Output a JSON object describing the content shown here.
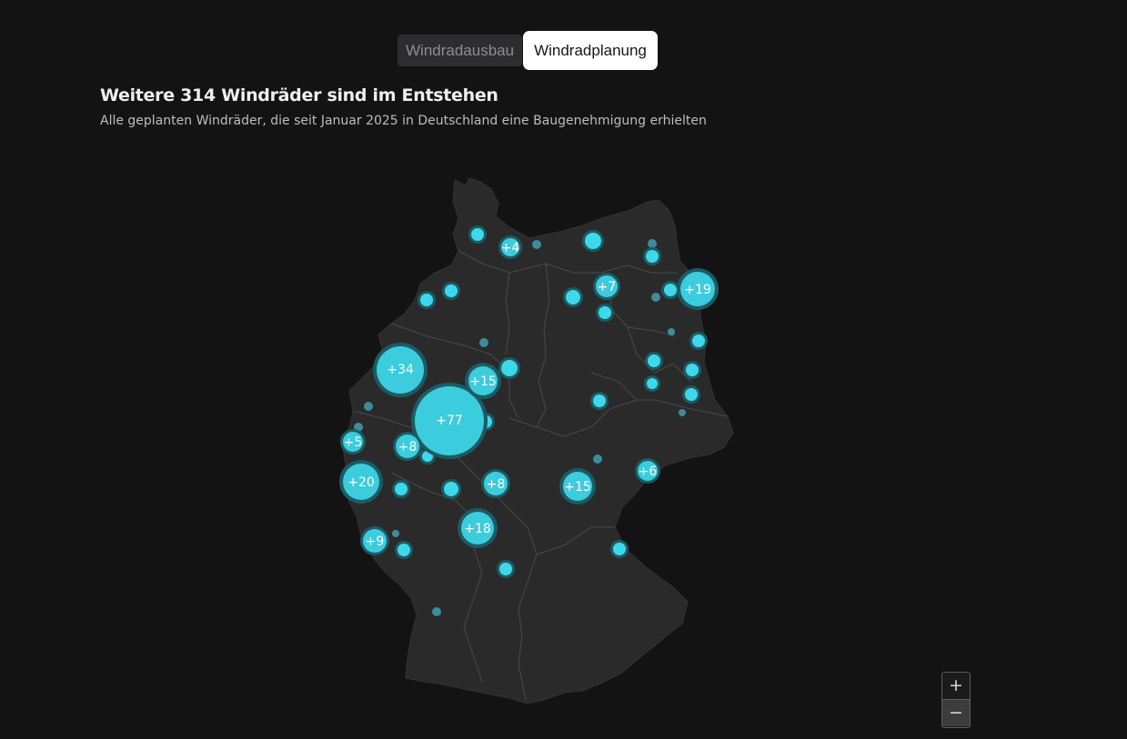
{
  "tabs": [
    {
      "label": "Windradausbau",
      "active": false
    },
    {
      "label": "Windradplanung",
      "active": true
    }
  ],
  "header": {
    "title": "Weitere 314 Windräder sind im Entstehen",
    "subtitle": "Alle geplanten Windräder, die seit Januar 2025 in Deutschland eine Baugenehmigung erhielten"
  },
  "zoom": {
    "in_label": "+",
    "out_label": "−"
  },
  "colors": {
    "background": "#131313",
    "land": "#2a2a2a",
    "border": "#4a4a4a",
    "cluster_fill": "#3fd8ea",
    "cluster_ring": "#1c5a64",
    "small_dot": "#3f8b99"
  },
  "clusters": [
    {
      "label": "+77"
    },
    {
      "label": "+34"
    },
    {
      "label": "+20"
    },
    {
      "label": "+19"
    },
    {
      "label": "+18"
    },
    {
      "label": "+15"
    },
    {
      "label": "+15"
    },
    {
      "label": "+9"
    },
    {
      "label": "+8"
    },
    {
      "label": "+8"
    },
    {
      "label": "+7"
    },
    {
      "label": "+6"
    },
    {
      "label": "+5"
    },
    {
      "label": "+4"
    }
  ]
}
